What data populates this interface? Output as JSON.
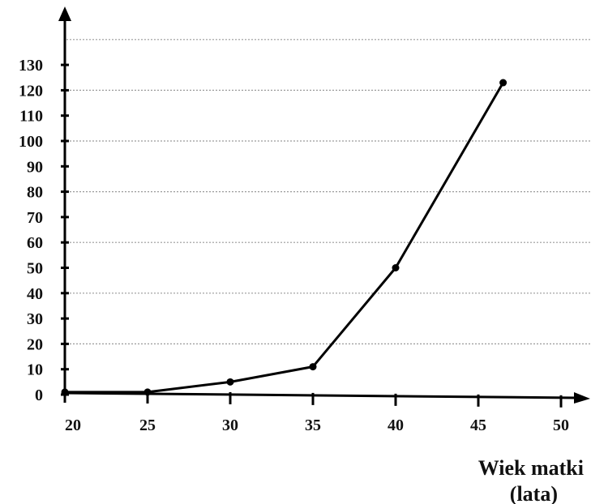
{
  "chart_data": {
    "type": "line",
    "title": "",
    "xlabel_line1": "Wiek matki",
    "xlabel_line2": "(lata)",
    "ylabel": "",
    "x_ticks": [
      20,
      25,
      30,
      35,
      40,
      45,
      50
    ],
    "y_ticks": [
      0,
      10,
      20,
      30,
      40,
      50,
      60,
      70,
      80,
      90,
      100,
      110,
      120,
      130
    ],
    "grid_y": [
      20,
      40,
      60,
      80,
      100,
      120,
      140
    ],
    "xlim": [
      20,
      52
    ],
    "ylim": [
      0,
      140
    ],
    "grid": true,
    "legend": "none",
    "series": [
      {
        "x": [
          20,
          25,
          30,
          35,
          40,
          46.5
        ],
        "y": [
          1,
          1,
          5,
          11,
          50,
          123
        ]
      }
    ]
  }
}
